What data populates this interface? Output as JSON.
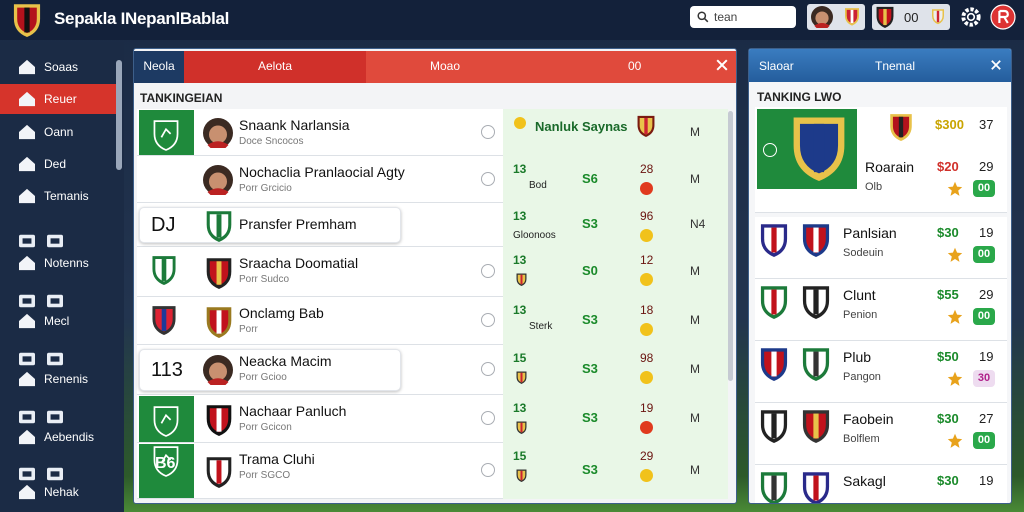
{
  "header": {
    "title": "Sepakla INepanlBablal",
    "search": "tean",
    "badge": "00"
  },
  "sidebar": [
    "Soaas",
    "Reuer",
    "Oann",
    "Ded",
    "Temanis",
    "Notenns",
    "Mecl",
    "Renenis",
    "Aebendis",
    "Nehak"
  ],
  "main": {
    "tabs": [
      "Neola",
      "Aelota",
      "Moao",
      "00"
    ],
    "heading": "TANKINGEIAN",
    "rows": [
      {
        "name": "Snaank Narlansia",
        "sub": "Doce Sncocos",
        "tag": "Nanluk Saynas",
        "mark": "M"
      },
      {
        "name": "Nochaclia Pranlaocial Agty",
        "sub": "Porr Grcicio",
        "num": "13",
        "tag": "Bod",
        "value": "S6",
        "score": "28",
        "mark": "M"
      },
      {
        "badge": "DJ",
        "name": "Pransfer Premham",
        "num": "13",
        "tag": "Gloonoos",
        "value": "S3",
        "score": "96",
        "mark": "N4"
      },
      {
        "name": "Sraacha Doomatial",
        "sub": "Porr Sudco",
        "num": "13",
        "value": "S0",
        "score": "12",
        "mark": "M"
      },
      {
        "name": "Onclamg Bab",
        "sub": "Porr",
        "num": "13",
        "tag": "Sterk",
        "value": "S3",
        "score": "18",
        "mark": "M"
      },
      {
        "badge": "113",
        "name": "Neacka Macim",
        "sub": "Porr Gcioo",
        "num": "15",
        "value": "S3",
        "score": "98",
        "mark": "M"
      },
      {
        "name": "Nachaar Panluch",
        "sub": "Porr Gcicon",
        "num": "13",
        "value": "S3",
        "score": "19",
        "mark": "M"
      },
      {
        "badge": "B6",
        "name": "Trama Cluhi",
        "sub": "Porr SGCO",
        "num": "15",
        "value": "S3",
        "score": "29",
        "mark": "M"
      }
    ]
  },
  "standings": {
    "tabs": [
      "Slaoar",
      "Tnemal"
    ],
    "heading": "TANKING LWO",
    "featured": {
      "price": "$300",
      "rank": "37"
    },
    "rows": [
      {
        "name": "Roarain",
        "sub": "Olb",
        "price": "$20",
        "rank": "29",
        "badge": "00"
      },
      {
        "name": "Panlsian",
        "sub": "Sodeuin",
        "price": "$30",
        "rank": "19",
        "badge": "00"
      },
      {
        "name": "Clunt",
        "sub": "Penion",
        "price": "$55",
        "rank": "29",
        "badge": "00"
      },
      {
        "name": "Plub",
        "sub": "Pangon",
        "price": "$50",
        "rank": "19",
        "badge": "30"
      },
      {
        "name": "Faobein",
        "sub": "Bolflem",
        "price": "$30",
        "rank": "27",
        "badge": "00"
      },
      {
        "name": "Sakagl",
        "price": "$30",
        "rank": "19"
      }
    ]
  }
}
